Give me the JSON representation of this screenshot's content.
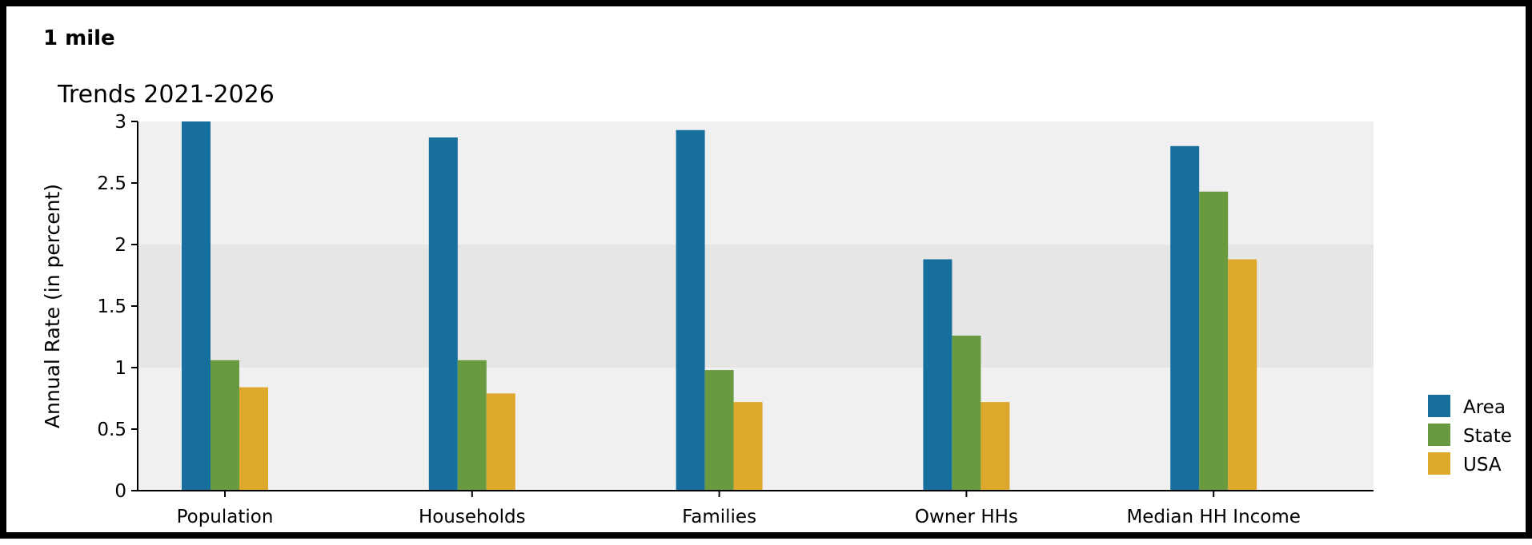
{
  "panel": {
    "heading": "1 mile"
  },
  "chart_data": {
    "type": "bar",
    "title": "Trends 2021-2026",
    "xlabel": "",
    "ylabel": "Annual Rate (in percent)",
    "ylim": [
      0,
      3
    ],
    "yticks": [
      0,
      0.5,
      1,
      1.5,
      2,
      2.5,
      3
    ],
    "ytick_labels": [
      "0",
      "0.5",
      "1",
      "1.5",
      "2",
      "2.5",
      "3"
    ],
    "categories": [
      "Population",
      "Households",
      "Families",
      "Owner HHs",
      "Median HH Income"
    ],
    "series": [
      {
        "name": "Area",
        "color": "#176f9e",
        "values": [
          3.02,
          2.87,
          2.93,
          1.88,
          2.8
        ]
      },
      {
        "name": "State",
        "color": "#6a9a3f",
        "values": [
          1.06,
          1.06,
          0.98,
          1.26,
          2.43
        ]
      },
      {
        "name": "USA",
        "color": "#dea82c",
        "values": [
          0.84,
          0.79,
          0.72,
          0.72,
          1.88
        ]
      }
    ],
    "background_bands": [
      "#f0f0f0",
      "#e6e6e6",
      "#f0f0f0"
    ],
    "grid": false,
    "legend_position": "right"
  }
}
